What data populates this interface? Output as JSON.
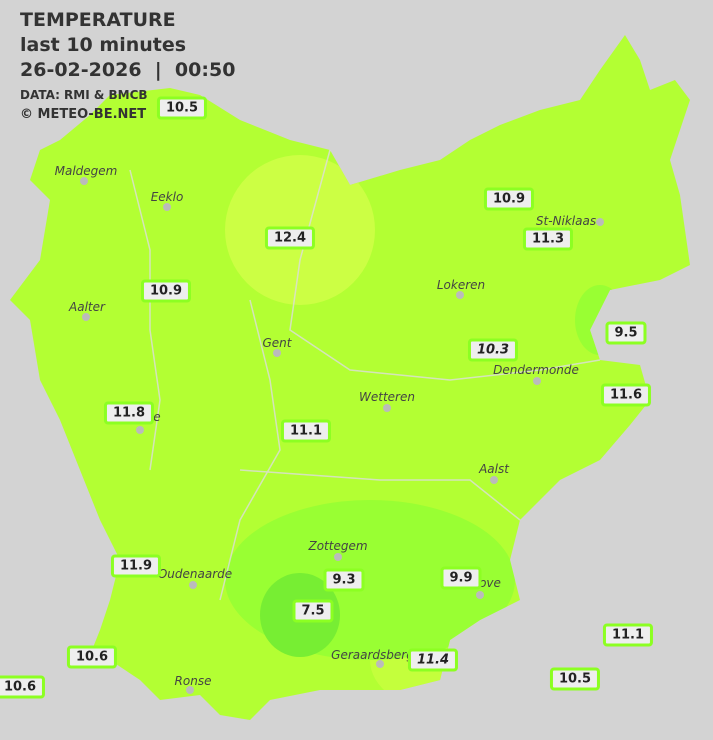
{
  "header": {
    "title": "TEMPERATURE",
    "subtitle": "last 10 minutes",
    "datetime": "26-02-2026  |  00:50",
    "source": "DATA: RMI & BMCB",
    "copyright": "© METEO-BE.NET"
  },
  "colors": {
    "background": "#d3d3d3",
    "base": "#b3ff33",
    "warm": "#ccff44",
    "cool": "#99ff33",
    "cold": "#77ee33",
    "label_border": "#8cff22"
  },
  "cities": [
    "Maldegem",
    "Eeklo",
    "Aalter",
    "Gent",
    "Lokeren",
    "St-Niklaas",
    "Dendermonde",
    "Wetteren",
    "Aalst",
    "Zottegem",
    "Oudenaarde",
    "Ronse",
    "Geraardsbergen",
    "e",
    "ove"
  ],
  "readings": [
    {
      "value": "10.5"
    },
    {
      "value": "10.9"
    },
    {
      "value": "12.4"
    },
    {
      "value": "11.3"
    },
    {
      "value": "10.9"
    },
    {
      "value": "9.5"
    },
    {
      "value": "10.3",
      "italic": true
    },
    {
      "value": "11.6"
    },
    {
      "value": "11.8"
    },
    {
      "value": "11.1"
    },
    {
      "value": "11.9"
    },
    {
      "value": "9.3"
    },
    {
      "value": "9.9"
    },
    {
      "value": "7.5"
    },
    {
      "value": "11.1"
    },
    {
      "value": "10.6"
    },
    {
      "value": "11.4",
      "italic": true
    },
    {
      "value": "10.5"
    },
    {
      "value": "10.6"
    }
  ]
}
